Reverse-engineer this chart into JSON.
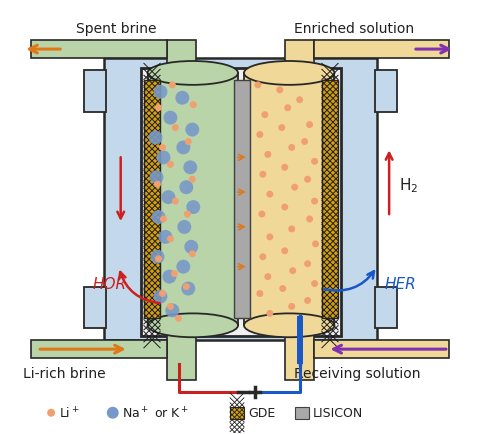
{
  "bg_color": "#ffffff",
  "fig_width": 4.8,
  "fig_height": 4.35,
  "colors": {
    "green_chamber": "#b8d4a8",
    "beige_chamber": "#f0d898",
    "outer_box": "#c4d8ec",
    "outer_box_dark": "#b0c8dc",
    "lisicon": "#a8a8a8",
    "gde_color": "#d4a010",
    "arrow_orange": "#e07818",
    "arrow_purple": "#8030b0",
    "arrow_red": "#cc2020",
    "arrow_blue": "#1858c8",
    "li_dot": "#f0a070",
    "na_dot": "#7898c8",
    "text_dark": "#202020",
    "border_dark": "#282828",
    "tube_green": "#b8d4a8",
    "tube_beige": "#f0d898",
    "inner_frame": "#e8e8e8"
  },
  "labels": {
    "spent_brine": "Spent brine",
    "enriched_solution": "Enriched solution",
    "li_rich_brine": "Li-rich brine",
    "receiving_solution": "Receiving solution",
    "HOR": "HOR",
    "HER": "HER",
    "H2": "H$_2$"
  }
}
